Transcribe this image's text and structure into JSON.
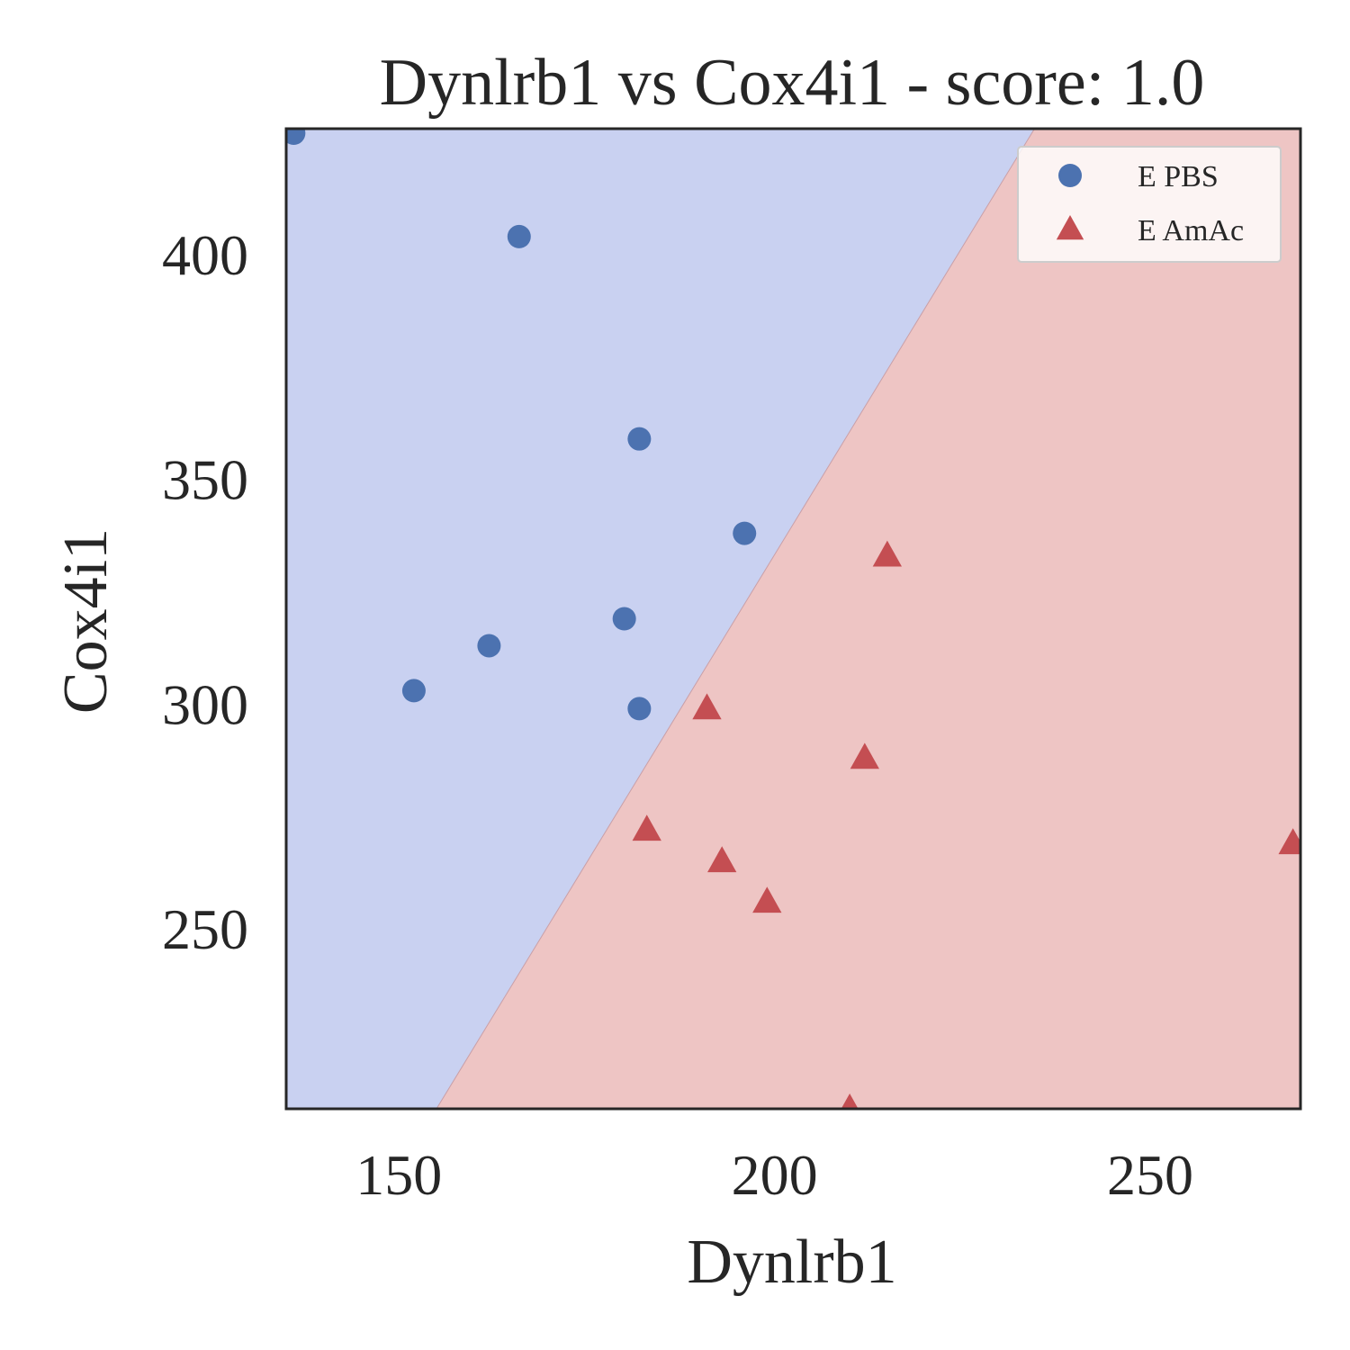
{
  "chart_data": {
    "type": "scatter",
    "title": "Dynlrb1 vs Cox4i1 - score: 1.0",
    "xlabel": "Dynlrb1",
    "ylabel": "Cox4i1",
    "xlim": [
      135,
      270
    ],
    "ylim": [
      210,
      428
    ],
    "xticks": [
      150,
      200,
      250
    ],
    "yticks": [
      250,
      300,
      350,
      400
    ],
    "xtick_labels": [
      "150",
      "200",
      "250"
    ],
    "ytick_labels": [
      "250",
      "300",
      "350",
      "400"
    ],
    "grid": false,
    "legend_position": "top-right",
    "decision_boundary": {
      "points": [
        [
          155,
          210
        ],
        [
          234.6,
          428
        ]
      ],
      "left_region": "E PBS",
      "right_region": "E AmAc",
      "left_color": "#c9d1f1",
      "right_color": "#eec5c4"
    },
    "series": [
      {
        "name": "E PBS",
        "marker": "circle",
        "color": "#4c72b0",
        "points": [
          {
            "x": 136,
            "y": 427
          },
          {
            "x": 166,
            "y": 404
          },
          {
            "x": 182,
            "y": 359
          },
          {
            "x": 196,
            "y": 338
          },
          {
            "x": 180,
            "y": 319
          },
          {
            "x": 162,
            "y": 313
          },
          {
            "x": 152,
            "y": 303
          },
          {
            "x": 182,
            "y": 299
          }
        ]
      },
      {
        "name": "E AmAc",
        "marker": "triangle",
        "color": "#c44e52",
        "points": [
          {
            "x": 215,
            "y": 333
          },
          {
            "x": 191,
            "y": 299
          },
          {
            "x": 212,
            "y": 288
          },
          {
            "x": 183,
            "y": 272
          },
          {
            "x": 193,
            "y": 265
          },
          {
            "x": 199,
            "y": 256
          },
          {
            "x": 269,
            "y": 269
          },
          {
            "x": 210,
            "y": 210
          }
        ]
      }
    ]
  }
}
